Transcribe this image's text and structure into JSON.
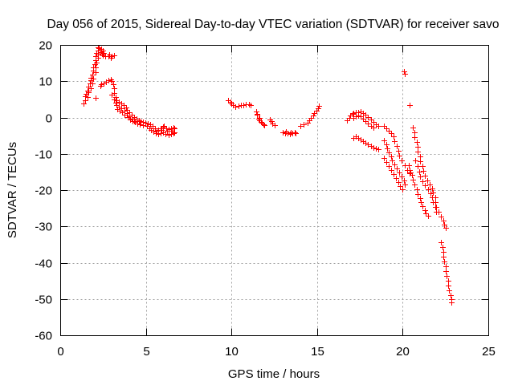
{
  "chart_data": {
    "type": "scatter",
    "title": "Day 056 of 2015, Sidereal Day-to-day VTEC variation (SDTVAR) for receiver savo",
    "xlabel": "GPS time / hours",
    "ylabel": "SDTVAR / TECUs",
    "xlim": [
      0,
      25
    ],
    "ylim": [
      -60,
      20
    ],
    "x_ticks": [
      0,
      5,
      10,
      15,
      20,
      25
    ],
    "y_ticks": [
      -60,
      -50,
      -40,
      -30,
      -20,
      -10,
      0,
      10,
      20
    ],
    "grid": true,
    "legend": "none",
    "series": [
      {
        "marker": "+",
        "color": "#ff0000",
        "points": [
          [
            1.36,
            4.0
          ],
          [
            1.41,
            4.9
          ],
          [
            1.45,
            6.0
          ],
          [
            1.5,
            6.6
          ],
          [
            1.55,
            7.5
          ],
          [
            1.64,
            8.6
          ],
          [
            1.69,
            9.5
          ],
          [
            1.74,
            10.4
          ],
          [
            1.78,
            11.0
          ],
          [
            1.83,
            11.9
          ],
          [
            1.88,
            13.0
          ],
          [
            1.92,
            13.9
          ],
          [
            1.97,
            14.8
          ],
          [
            2.02,
            15.9
          ],
          [
            2.06,
            17.0
          ],
          [
            2.11,
            17.9
          ],
          [
            2.16,
            18.6
          ],
          [
            2.25,
            19.2
          ],
          [
            2.35,
            19.0
          ],
          [
            2.44,
            18.6
          ],
          [
            2.53,
            17.9
          ],
          [
            2.58,
            17.0
          ],
          [
            2.77,
            17.0
          ],
          [
            3.0,
            17.0
          ],
          [
            3.1,
            17.2
          ],
          [
            2.2,
            19.4
          ],
          [
            2.3,
            18.2
          ],
          [
            2.4,
            17.6
          ],
          [
            2.48,
            17.2
          ],
          [
            2.86,
            17.4
          ],
          [
            2.95,
            16.6
          ],
          [
            1.55,
            5.7
          ],
          [
            1.64,
            7.1
          ],
          [
            1.74,
            8.2
          ],
          [
            1.83,
            9.5
          ],
          [
            1.92,
            10.8
          ],
          [
            2.02,
            12.6
          ],
          [
            2.06,
            13.9
          ],
          [
            2.11,
            15.2
          ],
          [
            2.16,
            16.6
          ],
          [
            2.2,
            17.5
          ],
          [
            2.06,
            5.5
          ],
          [
            2.3,
            8.8
          ],
          [
            2.39,
            9.3
          ],
          [
            2.49,
            9.5
          ],
          [
            2.63,
            9.9
          ],
          [
            2.77,
            10.4
          ],
          [
            2.91,
            10.6
          ],
          [
            3.0,
            10.2
          ],
          [
            3.05,
            9.3
          ],
          [
            3.1,
            8.2
          ],
          [
            3.14,
            6.9
          ],
          [
            3.19,
            5.7
          ],
          [
            3.28,
            4.9
          ],
          [
            3.38,
            4.4
          ],
          [
            3.52,
            4.0
          ],
          [
            3.66,
            3.5
          ],
          [
            3.8,
            2.9
          ],
          [
            3.89,
            2.2
          ],
          [
            3.99,
            1.5
          ],
          [
            4.13,
            0.9
          ],
          [
            4.27,
            0.2
          ],
          [
            4.41,
            -0.2
          ],
          [
            4.55,
            -0.7
          ],
          [
            4.69,
            -0.9
          ],
          [
            4.83,
            -1.1
          ],
          [
            4.97,
            -1.3
          ],
          [
            5.11,
            -1.5
          ],
          [
            3.0,
            6.4
          ],
          [
            3.1,
            5.1
          ],
          [
            3.19,
            4.2
          ],
          [
            3.28,
            3.5
          ],
          [
            3.42,
            3.1
          ],
          [
            3.56,
            2.7
          ],
          [
            3.71,
            2.0
          ],
          [
            3.85,
            1.3
          ],
          [
            3.99,
            0.4
          ],
          [
            4.13,
            -0.2
          ],
          [
            4.27,
            -0.9
          ],
          [
            4.46,
            -1.5
          ],
          [
            4.64,
            -1.8
          ],
          [
            4.83,
            -2.0
          ],
          [
            5.02,
            -2.2
          ],
          [
            3.33,
            2.4
          ],
          [
            3.47,
            2.0
          ],
          [
            3.61,
            1.6
          ],
          [
            3.75,
            0.9
          ],
          [
            3.9,
            0.2
          ],
          [
            4.04,
            -0.4
          ],
          [
            4.2,
            -0.8
          ],
          [
            4.36,
            -1.2
          ],
          [
            5.25,
            -1.8
          ],
          [
            5.39,
            -2.2
          ],
          [
            5.53,
            -2.9
          ],
          [
            5.68,
            -3.3
          ],
          [
            5.82,
            -2.9
          ],
          [
            5.96,
            -2.4
          ],
          [
            6.05,
            -2.2
          ],
          [
            6.19,
            -2.9
          ],
          [
            6.33,
            -3.1
          ],
          [
            6.47,
            -2.9
          ],
          [
            6.61,
            -2.7
          ],
          [
            5.16,
            -2.9
          ],
          [
            5.3,
            -3.3
          ],
          [
            5.44,
            -3.8
          ],
          [
            5.58,
            -4.2
          ],
          [
            5.72,
            -4.4
          ],
          [
            5.86,
            -4.2
          ],
          [
            6.0,
            -4.0
          ],
          [
            6.14,
            -4.4
          ],
          [
            6.29,
            -4.6
          ],
          [
            6.43,
            -4.4
          ],
          [
            6.57,
            -4.2
          ],
          [
            6.66,
            -4.0
          ],
          [
            6.66,
            -2.9
          ],
          [
            5.6,
            -3.6
          ],
          [
            5.9,
            -3.4
          ],
          [
            6.2,
            -3.6
          ],
          [
            6.5,
            -3.5
          ],
          [
            9.8,
            4.9
          ],
          [
            9.9,
            4.4
          ],
          [
            9.99,
            4.0
          ],
          [
            10.08,
            3.5
          ],
          [
            10.18,
            3.1
          ],
          [
            10.41,
            3.3
          ],
          [
            10.55,
            3.5
          ],
          [
            10.69,
            3.5
          ],
          [
            10.83,
            3.8
          ],
          [
            10.98,
            3.8
          ],
          [
            11.07,
            3.5
          ],
          [
            11.4,
            1.8
          ],
          [
            11.49,
            0.9
          ],
          [
            11.59,
            0.0
          ],
          [
            11.63,
            -0.7
          ],
          [
            11.73,
            -1.3
          ],
          [
            11.82,
            -1.8
          ],
          [
            11.91,
            -2.0
          ],
          [
            11.45,
            1.0
          ],
          [
            11.55,
            -0.3
          ],
          [
            11.68,
            -1.0
          ],
          [
            12.2,
            -0.4
          ],
          [
            12.29,
            -0.9
          ],
          [
            12.38,
            -1.5
          ],
          [
            12.48,
            -2.0
          ],
          [
            12.95,
            -4.0
          ],
          [
            13.09,
            -4.2
          ],
          [
            13.23,
            -4.2
          ],
          [
            13.37,
            -4.4
          ],
          [
            13.51,
            -4.2
          ],
          [
            13.65,
            -4.0
          ],
          [
            13.74,
            -4.2
          ],
          [
            13.16,
            -3.8
          ],
          [
            13.44,
            -3.9
          ],
          [
            14.02,
            -2.2
          ],
          [
            14.17,
            -1.8
          ],
          [
            14.4,
            -1.3
          ],
          [
            14.54,
            -0.7
          ],
          [
            14.63,
            0.0
          ],
          [
            14.73,
            0.7
          ],
          [
            14.82,
            1.3
          ],
          [
            14.92,
            2.0
          ],
          [
            15.01,
            2.7
          ],
          [
            15.06,
            3.3
          ],
          [
            16.74,
            -0.7
          ],
          [
            16.84,
            0.0
          ],
          [
            16.93,
            0.7
          ],
          [
            17.03,
            1.1
          ],
          [
            17.12,
            1.3
          ],
          [
            17.26,
            1.5
          ],
          [
            17.4,
            1.5
          ],
          [
            17.54,
            1.8
          ],
          [
            17.68,
            1.3
          ],
          [
            17.82,
            0.9
          ],
          [
            17.96,
            0.2
          ],
          [
            18.11,
            -0.4
          ],
          [
            18.25,
            -1.1
          ],
          [
            18.39,
            -1.8
          ],
          [
            18.53,
            -2.2
          ],
          [
            17.12,
            0.0
          ],
          [
            17.26,
            0.4
          ],
          [
            17.4,
            0.7
          ],
          [
            17.54,
            0.4
          ],
          [
            17.68,
            -0.2
          ],
          [
            17.82,
            -0.9
          ],
          [
            17.96,
            -1.5
          ],
          [
            18.11,
            -2.2
          ],
          [
            18.25,
            -2.7
          ],
          [
            18.86,
            -2.2
          ],
          [
            19.0,
            -2.9
          ],
          [
            19.14,
            -3.5
          ],
          [
            19.28,
            -4.2
          ],
          [
            17.12,
            -5.5
          ],
          [
            17.26,
            -5.1
          ],
          [
            17.4,
            -5.5
          ],
          [
            17.54,
            -6.0
          ],
          [
            17.68,
            -6.4
          ],
          [
            17.82,
            -6.9
          ],
          [
            17.96,
            -7.3
          ],
          [
            18.11,
            -7.7
          ],
          [
            18.25,
            -8.2
          ],
          [
            18.39,
            -8.4
          ],
          [
            18.53,
            -8.6
          ],
          [
            18.9,
            -6.2
          ],
          [
            19.0,
            -7.3
          ],
          [
            19.09,
            -8.4
          ],
          [
            19.18,
            -9.5
          ],
          [
            19.28,
            -10.6
          ],
          [
            19.37,
            -11.7
          ],
          [
            19.51,
            -12.8
          ],
          [
            19.65,
            -13.9
          ],
          [
            19.79,
            -15.0
          ],
          [
            19.93,
            -16.1
          ],
          [
            20.03,
            -17.2
          ],
          [
            20.12,
            -18.3
          ],
          [
            18.86,
            -11.0
          ],
          [
            19.0,
            -12.2
          ],
          [
            19.14,
            -13.3
          ],
          [
            19.28,
            -14.4
          ],
          [
            19.42,
            -15.5
          ],
          [
            19.56,
            -16.6
          ],
          [
            19.7,
            -17.7
          ],
          [
            19.84,
            -18.8
          ],
          [
            19.98,
            -19.7
          ],
          [
            19.42,
            -5.1
          ],
          [
            19.51,
            -6.4
          ],
          [
            19.61,
            -7.7
          ],
          [
            19.7,
            -9.1
          ],
          [
            19.79,
            -10.4
          ],
          [
            19.93,
            -11.7
          ],
          [
            20.08,
            -13.0
          ],
          [
            20.22,
            -14.4
          ],
          [
            20.36,
            -15.2
          ],
          [
            20.03,
            12.8
          ],
          [
            20.08,
            12.2
          ],
          [
            20.36,
            3.5
          ],
          [
            20.59,
            -2.7
          ],
          [
            20.64,
            -4.0
          ],
          [
            20.68,
            -5.3
          ],
          [
            20.78,
            -6.6
          ],
          [
            20.83,
            -8.0
          ],
          [
            20.87,
            -9.3
          ],
          [
            20.97,
            -10.6
          ],
          [
            21.01,
            -11.9
          ],
          [
            21.11,
            -13.3
          ],
          [
            21.2,
            -14.6
          ],
          [
            21.29,
            -15.9
          ],
          [
            21.39,
            -17.2
          ],
          [
            21.53,
            -18.3
          ],
          [
            21.67,
            -19.4
          ],
          [
            21.76,
            -20.6
          ],
          [
            21.86,
            -21.9
          ],
          [
            21.9,
            -23.2
          ],
          [
            21.95,
            -24.5
          ],
          [
            22.05,
            -25.9
          ],
          [
            22.19,
            -27.2
          ],
          [
            22.33,
            -28.3
          ],
          [
            22.42,
            -29.4
          ],
          [
            22.51,
            -30.3
          ],
          [
            20.31,
            -13.0
          ],
          [
            20.4,
            -14.4
          ],
          [
            20.5,
            -15.7
          ],
          [
            20.59,
            -17.0
          ],
          [
            20.68,
            -18.3
          ],
          [
            20.78,
            -19.7
          ],
          [
            20.87,
            -21.0
          ],
          [
            20.97,
            -22.1
          ],
          [
            21.06,
            -23.2
          ],
          [
            21.15,
            -24.3
          ],
          [
            21.25,
            -25.4
          ],
          [
            21.34,
            -26.3
          ],
          [
            21.44,
            -27.0
          ],
          [
            20.73,
            -11.7
          ],
          [
            20.83,
            -13.3
          ],
          [
            20.92,
            -14.8
          ],
          [
            21.01,
            -16.1
          ],
          [
            21.15,
            -17.5
          ],
          [
            21.29,
            -18.6
          ],
          [
            21.44,
            -19.7
          ],
          [
            21.58,
            -20.8
          ],
          [
            21.67,
            -21.9
          ],
          [
            21.76,
            -23.2
          ],
          [
            21.86,
            -24.5
          ],
          [
            21.95,
            -25.9
          ],
          [
            20.45,
            -15.0
          ],
          [
            22.23,
            -34.3
          ],
          [
            22.28,
            -35.6
          ],
          [
            22.33,
            -36.9
          ],
          [
            22.37,
            -38.2
          ],
          [
            22.42,
            -39.6
          ],
          [
            22.47,
            -40.9
          ],
          [
            22.51,
            -42.2
          ],
          [
            22.56,
            -43.5
          ],
          [
            22.61,
            -44.9
          ],
          [
            22.65,
            -46.2
          ],
          [
            22.7,
            -47.5
          ],
          [
            22.75,
            -48.8
          ],
          [
            22.8,
            -49.9
          ],
          [
            22.84,
            -50.8
          ]
        ]
      }
    ]
  }
}
